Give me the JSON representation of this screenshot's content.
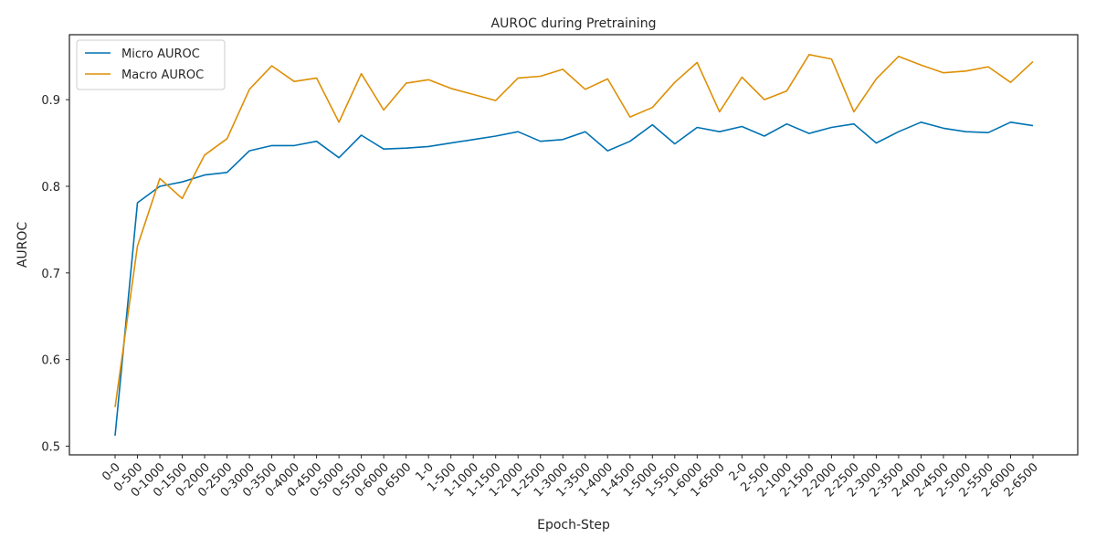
{
  "chart_data": {
    "type": "line",
    "title": "AUROC during Pretraining",
    "xlabel": "Epoch-Step",
    "ylabel": "AUROC",
    "ylim": [
      0.49,
      0.975
    ],
    "yticks": [
      0.5,
      0.6,
      0.7,
      0.8,
      0.9
    ],
    "grid": false,
    "legend_position": "top-left",
    "categories": [
      "0-0",
      "0-500",
      "0-1000",
      "0-1500",
      "0-2000",
      "0-2500",
      "0-3000",
      "0-3500",
      "0-4000",
      "0-4500",
      "0-5000",
      "0-5500",
      "0-6000",
      "0-6500",
      "1-0",
      "1-500",
      "1-1000",
      "1-1500",
      "1-2000",
      "1-2500",
      "1-3000",
      "1-3500",
      "1-4000",
      "1-4500",
      "1-5000",
      "1-5500",
      "1-6000",
      "1-6500",
      "2-0",
      "2-500",
      "2-1000",
      "2-1500",
      "2-2000",
      "2-2500",
      "2-3000",
      "2-3500",
      "2-4000",
      "2-4500",
      "2-5000",
      "2-5500",
      "2-6000",
      "2-6500"
    ],
    "series": [
      {
        "name": "Micro AUROC",
        "color": "#0072b2",
        "values": [
          0.512,
          0.781,
          0.8,
          0.805,
          0.813,
          0.816,
          0.841,
          0.847,
          0.847,
          0.852,
          0.833,
          0.859,
          0.843,
          0.844,
          0.846,
          0.85,
          0.854,
          0.858,
          0.863,
          0.852,
          0.854,
          0.863,
          0.841,
          0.852,
          0.871,
          0.849,
          0.868,
          0.863,
          0.869,
          0.858,
          0.872,
          0.861,
          0.868,
          0.872,
          0.85,
          0.863,
          0.874,
          0.867,
          0.863,
          0.862,
          0.874,
          0.87
        ]
      },
      {
        "name": "Macro AUROC",
        "color": "#de8f05",
        "values": [
          0.545,
          0.731,
          0.809,
          0.786,
          0.836,
          0.855,
          0.912,
          0.939,
          0.921,
          0.925,
          0.874,
          0.93,
          0.888,
          0.919,
          0.923,
          0.913,
          0.906,
          0.899,
          0.925,
          0.927,
          0.935,
          0.912,
          0.924,
          0.88,
          0.891,
          0.92,
          0.943,
          0.886,
          0.926,
          0.9,
          0.91,
          0.952,
          0.947,
          0.886,
          0.924,
          0.95,
          0.94,
          0.931,
          0.933,
          0.938,
          0.92,
          0.944
        ]
      }
    ]
  }
}
